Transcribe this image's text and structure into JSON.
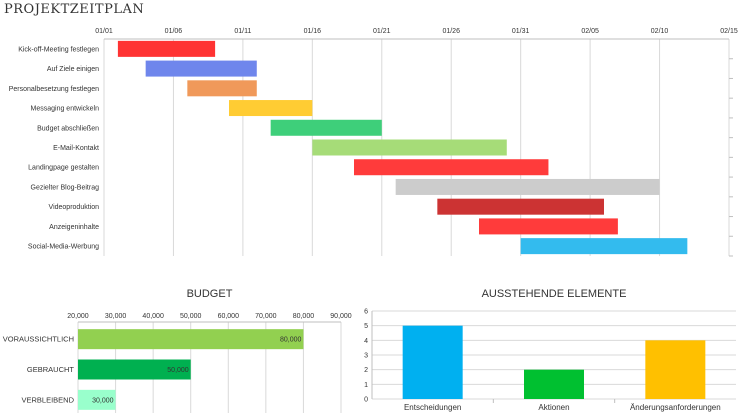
{
  "page_title": "PROJEKTZEITPLAN",
  "colors": {
    "grid": "#d9d9d9",
    "axis": "#bfbfbf",
    "label": "#333333"
  },
  "chart_data": [
    {
      "id": "gantt",
      "type": "bar",
      "orientation": "horizontal-range",
      "title": "PROJEKTZEITPLAN",
      "x_ticks": [
        "01/01",
        "01/06",
        "01/11",
        "01/16",
        "01/21",
        "01/26",
        "01/31",
        "02/05",
        "02/10",
        "02/15"
      ],
      "x_domain_days": [
        0,
        45
      ],
      "tasks": [
        {
          "name": "Kick-off-Meeting festlegen",
          "start": 1,
          "end": 8,
          "color": "#ff3333"
        },
        {
          "name": "Auf Ziele einigen",
          "start": 3,
          "end": 11,
          "color": "#6f86ec"
        },
        {
          "name": "Personalbesetzung festlegen",
          "start": 6,
          "end": 11,
          "color": "#f0995a"
        },
        {
          "name": "Messaging entwickeln",
          "start": 9,
          "end": 15,
          "color": "#ffcc33"
        },
        {
          "name": "Budget abschließen",
          "start": 12,
          "end": 20,
          "color": "#3ecf7a"
        },
        {
          "name": "E-Mail-Kontakt",
          "start": 15,
          "end": 29,
          "color": "#a6dc78"
        },
        {
          "name": "Landingpage gestalten",
          "start": 18,
          "end": 32,
          "color": "#ff3b3b"
        },
        {
          "name": "Gezielter Blog-Beitrag",
          "start": 21,
          "end": 40,
          "color": "#cccccc"
        },
        {
          "name": "Videoproduktion",
          "start": 24,
          "end": 36,
          "color": "#cc3333"
        },
        {
          "name": "Anzeigeninhalte",
          "start": 27,
          "end": 37,
          "color": "#ff3b3b"
        },
        {
          "name": "Social-Media-Werbung",
          "start": 30,
          "end": 42,
          "color": "#33bbee"
        }
      ]
    },
    {
      "id": "budget",
      "type": "bar",
      "orientation": "horizontal",
      "title": "BUDGET",
      "categories": [
        "VORAUSSICHTLICH",
        "GEBRAUCHT",
        "VERBLEIBEND"
      ],
      "values": [
        80000,
        50000,
        30000
      ],
      "value_labels": [
        "80,000",
        "50,000",
        "30,000"
      ],
      "colors": [
        "#92d050",
        "#00b050",
        "#99ffcc"
      ],
      "xlim": [
        20000,
        90000
      ],
      "x_ticks": [
        "20,000",
        "30,000",
        "40,000",
        "50,000",
        "60,000",
        "70,000",
        "80,000",
        "90,000"
      ]
    },
    {
      "id": "pending",
      "type": "bar",
      "orientation": "vertical",
      "title": "AUSSTEHENDE ELEMENTE",
      "categories": [
        "Entscheidungen",
        "Aktionen",
        "Änderungsanforderungen"
      ],
      "values": [
        5,
        2,
        4
      ],
      "colors": [
        "#00b0f0",
        "#00c030",
        "#ffc000"
      ],
      "ylim": [
        0,
        6
      ],
      "y_ticks": [
        "0",
        "1",
        "2",
        "3",
        "4",
        "5",
        "6"
      ]
    }
  ]
}
